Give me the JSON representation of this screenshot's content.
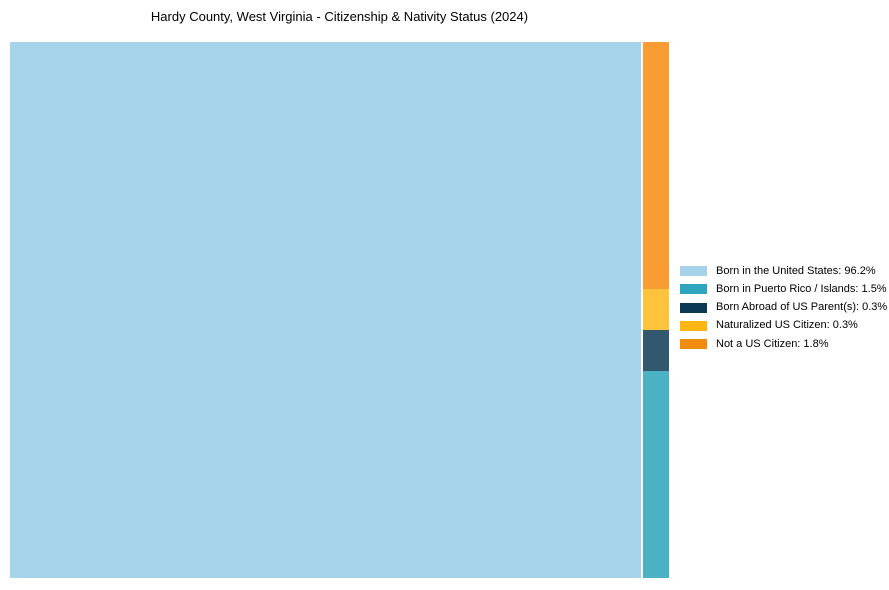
{
  "chart_data": {
    "type": "treemap",
    "title": "Hardy County, West Virginia - Citizenship & Nativity Status (2024)",
    "unit": "%",
    "legend_position": "right",
    "background": "#ffffff",
    "slices": [
      {
        "label": "Born in the United States",
        "value": 96.2,
        "color": "#A6D3EA",
        "legend_color": "#A6D3EA"
      },
      {
        "label": "Born in Puerto Rico / Islands",
        "value": 1.5,
        "color": "#4BB1C4",
        "legend_color": "#2FA4BE"
      },
      {
        "label": "Born Abroad of US Parent(s)",
        "value": 0.3,
        "color": "#32586E",
        "legend_color": "#0C3A55"
      },
      {
        "label": "Naturalized US Citizen",
        "value": 0.3,
        "color": "#FFC43B",
        "legend_color": "#FFB612"
      },
      {
        "label": "Not a US Citizen",
        "value": 1.8,
        "color": "#F99D33",
        "legend_color": "#F28A0E"
      }
    ]
  }
}
